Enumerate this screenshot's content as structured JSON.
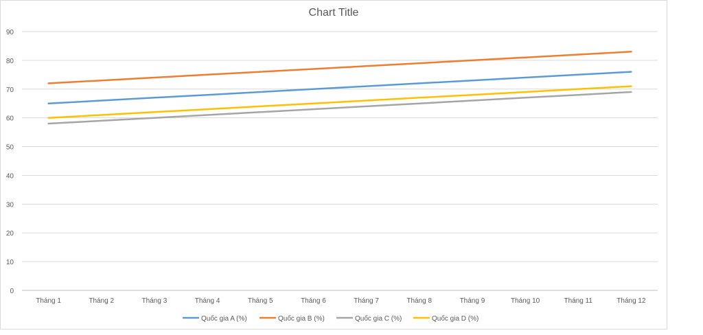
{
  "chart_data": {
    "type": "line",
    "title": "Chart Title",
    "xlabel": "",
    "ylabel": "",
    "ylim": [
      0,
      90
    ],
    "ytick_step": 10,
    "grid": true,
    "legend_position": "bottom",
    "categories": [
      "Tháng 1",
      "Tháng 2",
      "Tháng 3",
      "Tháng 4",
      "Tháng 5",
      "Tháng 6",
      "Tháng 7",
      "Tháng 8",
      "Tháng 9",
      "Tháng 10",
      "Tháng 11",
      "Tháng 12"
    ],
    "series": [
      {
        "name": "Quốc gia A (%)",
        "color": "#5b9bd5",
        "values": [
          65,
          66,
          67,
          68,
          69,
          70,
          71,
          72,
          73,
          74,
          75,
          76
        ]
      },
      {
        "name": "Quốc gia B (%)",
        "color": "#ed7d31",
        "values": [
          72,
          73,
          74,
          75,
          76,
          77,
          78,
          79,
          80,
          81,
          82,
          83
        ]
      },
      {
        "name": "Quốc gia C (%)",
        "color": "#a5a5a5",
        "values": [
          58,
          59,
          60,
          61,
          62,
          63,
          64,
          65,
          66,
          67,
          68,
          69
        ]
      },
      {
        "name": "Quốc gia D (%)",
        "color": "#ffc000",
        "values": [
          60,
          61,
          62,
          63,
          64,
          65,
          66,
          67,
          68,
          69,
          70,
          71
        ]
      }
    ]
  }
}
